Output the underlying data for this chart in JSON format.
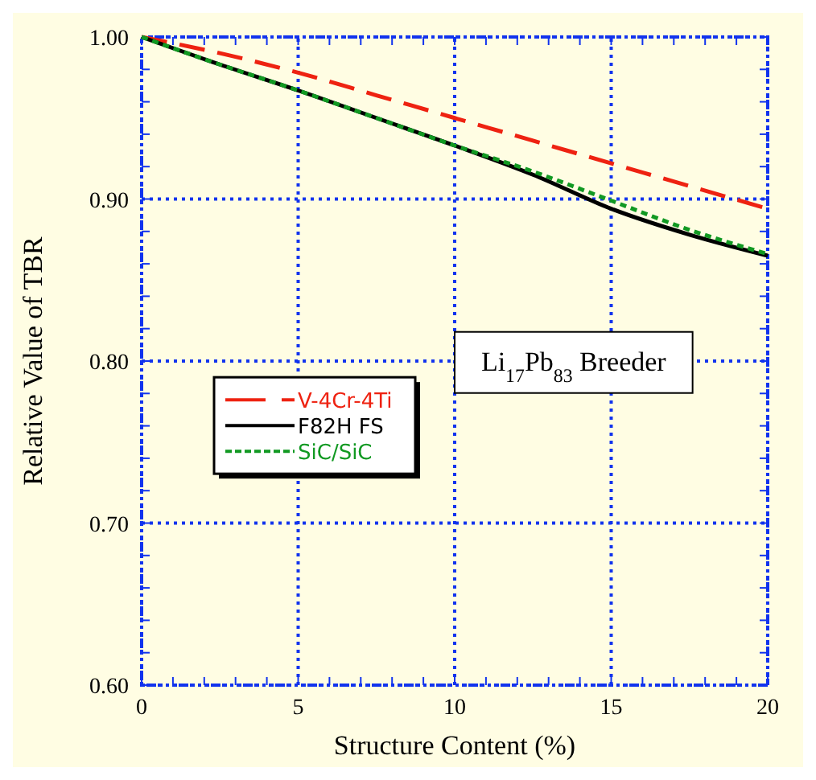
{
  "chart_data": {
    "type": "line",
    "xlabel": "Structure Content (%)",
    "ylabel": "Relative Value of TBR",
    "x": [
      0,
      2.5,
      5,
      7.5,
      10,
      12.5,
      15,
      17.5,
      20
    ],
    "series": [
      {
        "name": "V-4Cr-4Ti",
        "color": "#ee2211",
        "line_style": "dashed",
        "values": [
          1.0,
          0.99,
          0.978,
          0.964,
          0.95,
          0.936,
          0.922,
          0.908,
          0.894
        ]
      },
      {
        "name": "F82H FS",
        "color": "#000000",
        "line_style": "solid",
        "values": [
          1.0,
          0.983,
          0.967,
          0.95,
          0.933,
          0.915,
          0.894,
          0.878,
          0.865
        ]
      },
      {
        "name": "SiC/SiC",
        "color": "#119922",
        "line_style": "dotted",
        "values": [
          1.0,
          0.983,
          0.967,
          0.95,
          0.933,
          0.917,
          0.899,
          0.881,
          0.866
        ]
      }
    ],
    "xlim": [
      0,
      20
    ],
    "xticks": [
      0,
      {
        "value": 1,
        "label": null
      },
      {
        "value": 2,
        "label": null
      },
      {
        "value": 3,
        "label": null
      },
      {
        "value": 4,
        "label": null
      },
      5,
      {
        "value": 6,
        "label": null
      },
      {
        "value": 7,
        "label": null
      },
      {
        "value": 8,
        "label": null
      },
      {
        "value": 9,
        "label": null
      },
      10,
      {
        "value": 11,
        "label": null
      },
      {
        "value": 12,
        "label": null
      },
      {
        "value": 13,
        "label": null
      },
      {
        "value": 14,
        "label": null
      },
      15,
      {
        "value": 16,
        "label": null
      },
      {
        "value": 17,
        "label": null
      },
      {
        "value": 18,
        "label": null
      },
      {
        "value": 19,
        "label": null
      },
      20
    ],
    "ylim": [
      0.6,
      1.0
    ],
    "yticks": [
      {
        "value": 0.6,
        "label": "0.60"
      },
      {
        "value": 0.62,
        "label": null
      },
      {
        "value": 0.64,
        "label": null
      },
      {
        "value": 0.66,
        "label": null
      },
      {
        "value": 0.68,
        "label": null
      },
      {
        "value": 0.7,
        "label": "0.70"
      },
      {
        "value": 0.72,
        "label": null
      },
      {
        "value": 0.74,
        "label": null
      },
      {
        "value": 0.76,
        "label": null
      },
      {
        "value": 0.78,
        "label": null
      },
      {
        "value": 0.8,
        "label": "0.80"
      },
      {
        "value": 0.82,
        "label": null
      },
      {
        "value": 0.84,
        "label": null
      },
      {
        "value": 0.86,
        "label": null
      },
      {
        "value": 0.88,
        "label": null
      },
      {
        "value": 0.9,
        "label": "0.90"
      },
      {
        "value": 0.92,
        "label": null
      },
      {
        "value": 0.94,
        "label": null
      },
      {
        "value": 0.96,
        "label": null
      },
      {
        "value": 0.98,
        "label": null
      },
      {
        "value": 1.0,
        "label": "1.00"
      }
    ],
    "grid": true,
    "legend": "left",
    "marker": "none",
    "annotations": [
      "Li$_{17}$Pb$_{83}$ Breeder"
    ]
  }
}
